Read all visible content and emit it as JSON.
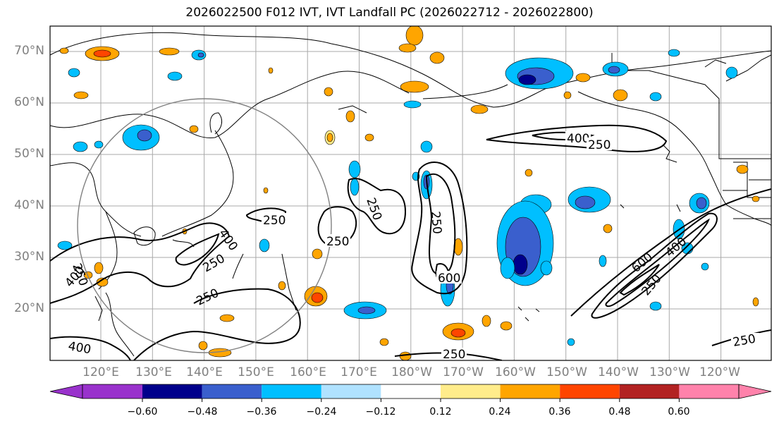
{
  "title": "2026022500 F012 IVT, IVT Landfall PC (2026022712 - 2026022800)",
  "lat_labels": [
    "70°N",
    "60°N",
    "50°N",
    "40°N",
    "30°N",
    "20°N"
  ],
  "lon_labels": [
    "120°E",
    "130°E",
    "140°E",
    "150°E",
    "160°E",
    "170°E",
    "180°W",
    "170°W",
    "160°W",
    "150°W",
    "140°W",
    "130°W",
    "120°W"
  ],
  "contour_labels": [
    "400",
    "250",
    "250",
    "250",
    "250",
    "250",
    "600",
    "250",
    "250",
    "250",
    "600",
    "400",
    "250",
    "250",
    "400",
    "400",
    "400",
    "250"
  ],
  "colorbar": {
    "ticks": [
      "−0.60",
      "−0.48",
      "−0.36",
      "−0.24",
      "−0.12",
      "0.12",
      "0.24",
      "0.36",
      "0.48",
      "0.60"
    ],
    "colors": [
      "#9932cc",
      "#00008b",
      "#3a5fcd",
      "#00bfff",
      "#b0e2ff",
      "#ffffff",
      "#ffec8b",
      "#ffa500",
      "#ff4500",
      "#b22222",
      "#ff82ab"
    ]
  },
  "shading_colors": {
    "neg_light": "#b0e2ff",
    "neg_mid": "#00bfff",
    "neg_strong": "#3a5fcd",
    "neg_extreme": "#00008b",
    "pos_light": "#ffec8b",
    "pos_mid": "#ffa500",
    "pos_strong": "#ff4500"
  }
}
